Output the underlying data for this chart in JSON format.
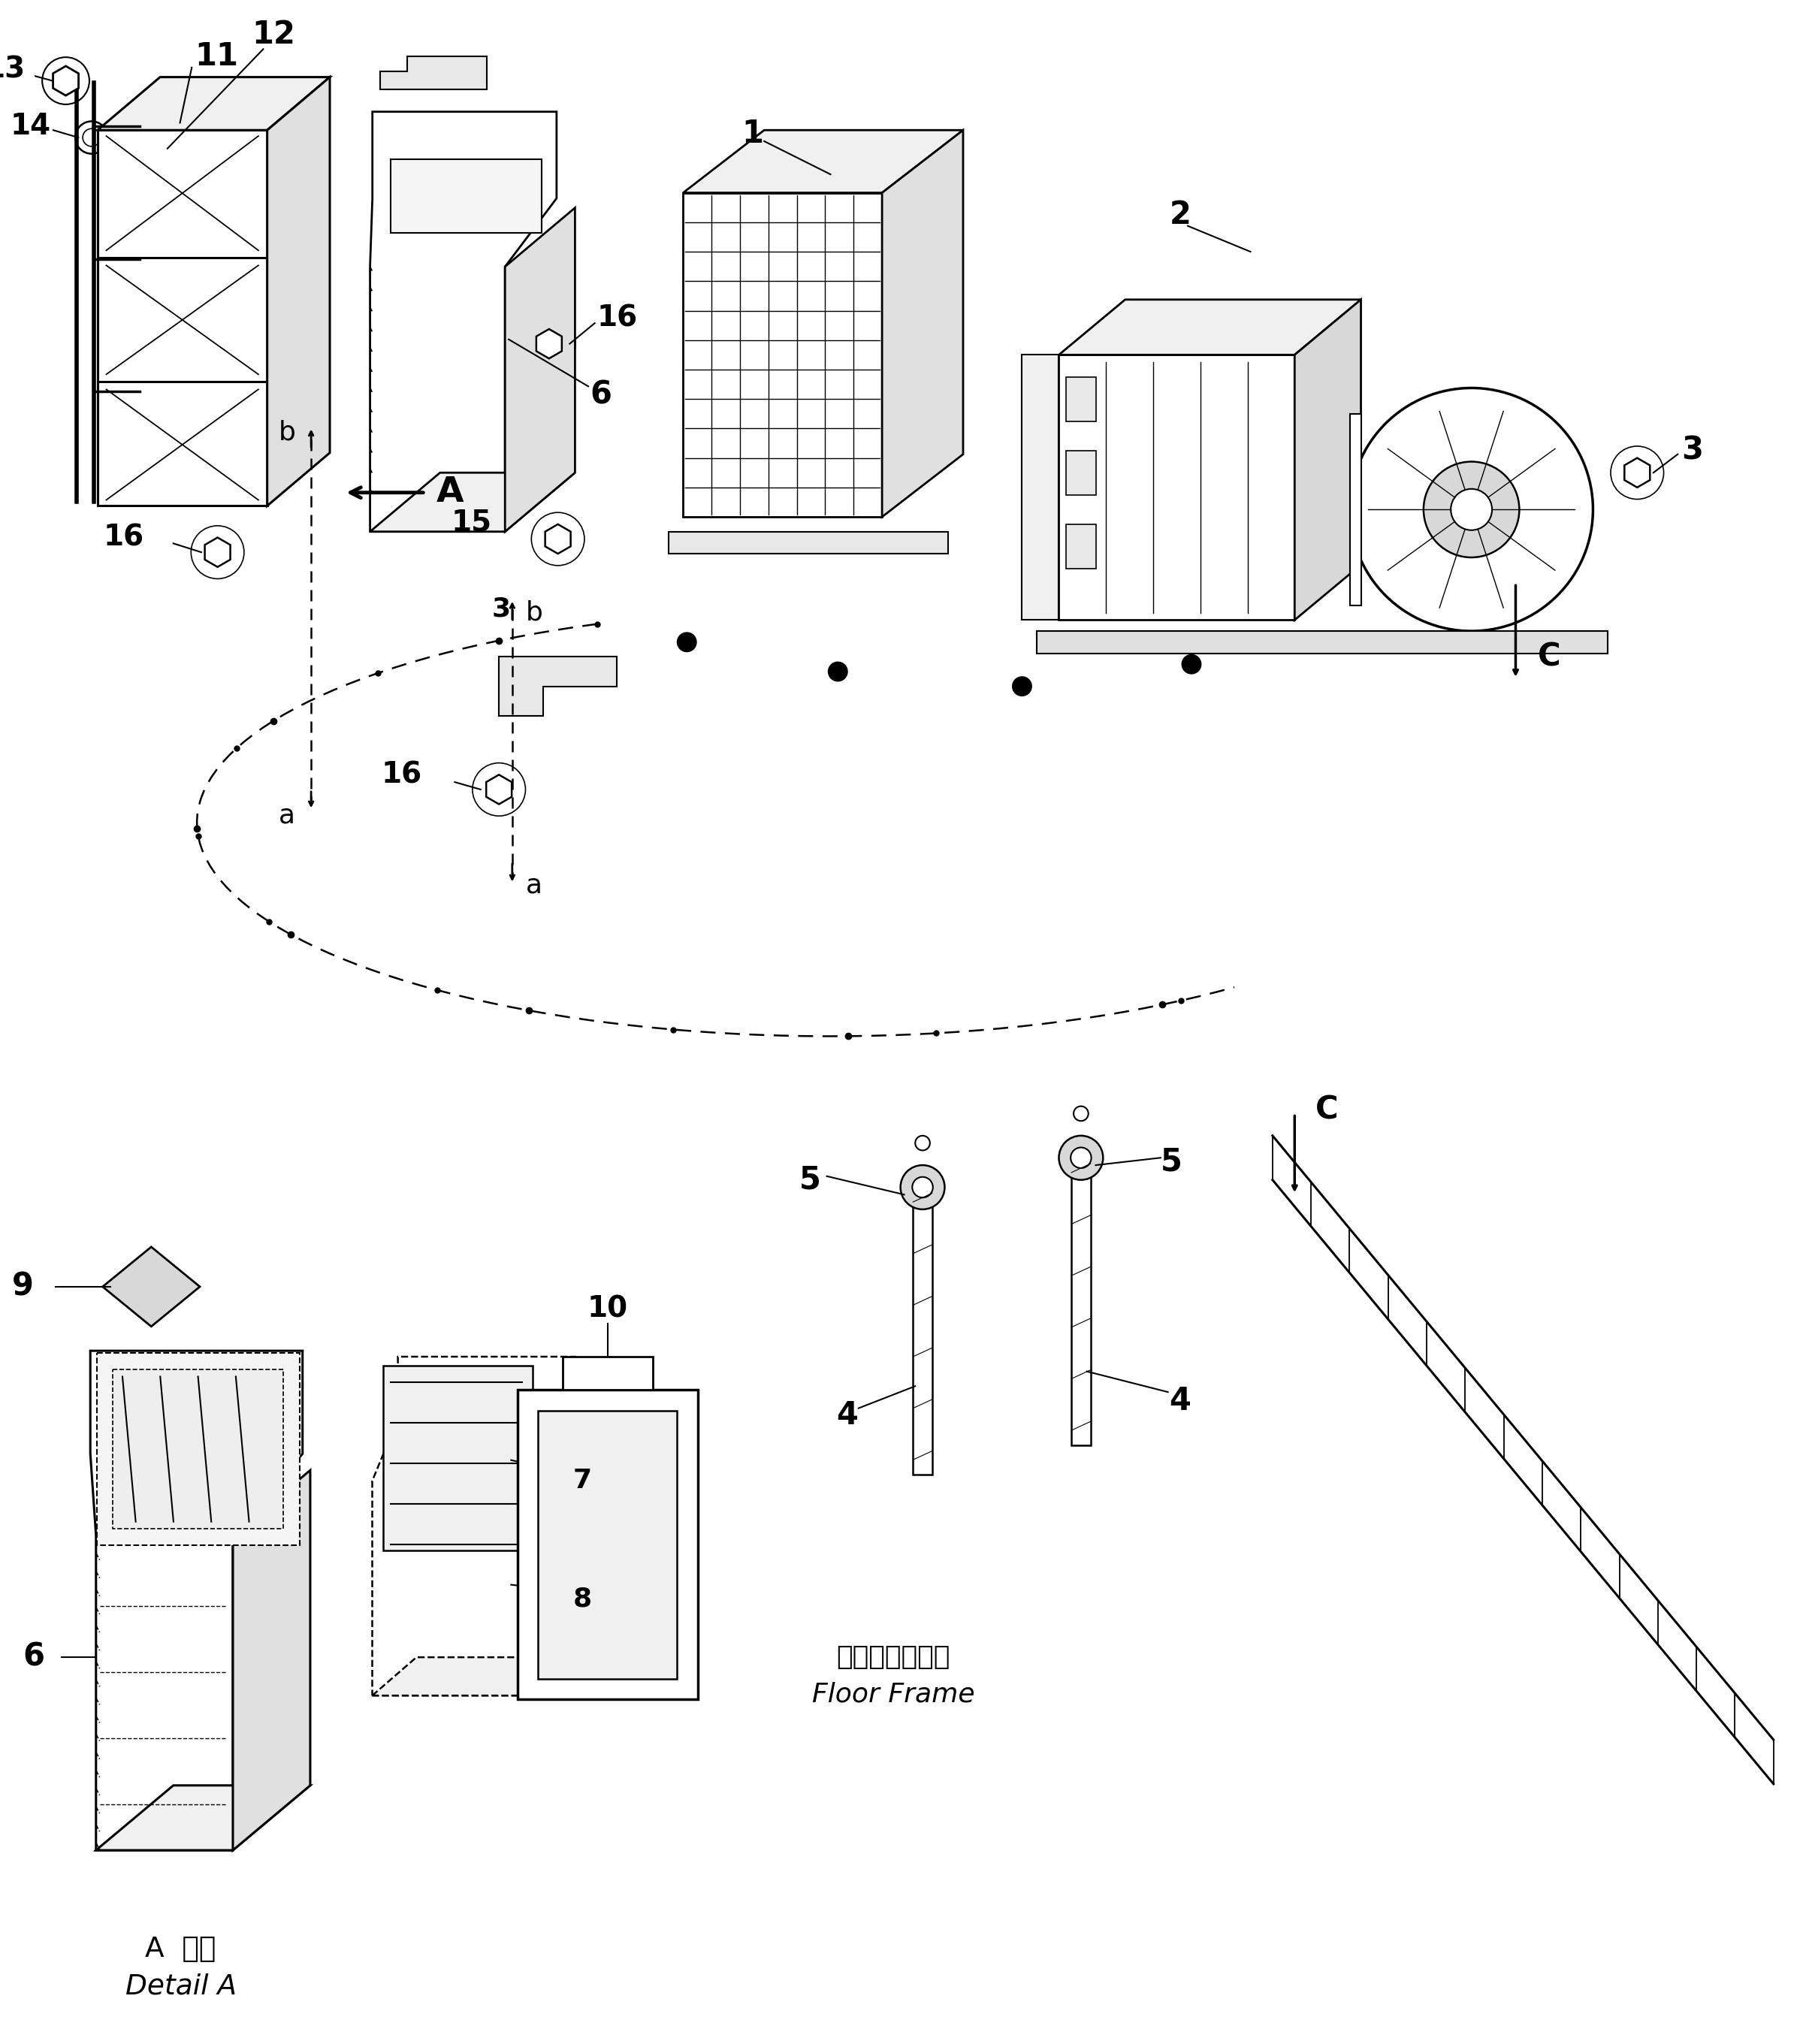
{
  "bg_color": "#ffffff",
  "line_color": "#000000",
  "fig_width": 23.96,
  "fig_height": 27.21,
  "bottom_labels": {
    "A_detail_ja": "A  詳細",
    "A_detail_en": "Detail A",
    "floor_frame_ja": "フロアフレーム",
    "floor_frame_en": "Floor Frame"
  }
}
